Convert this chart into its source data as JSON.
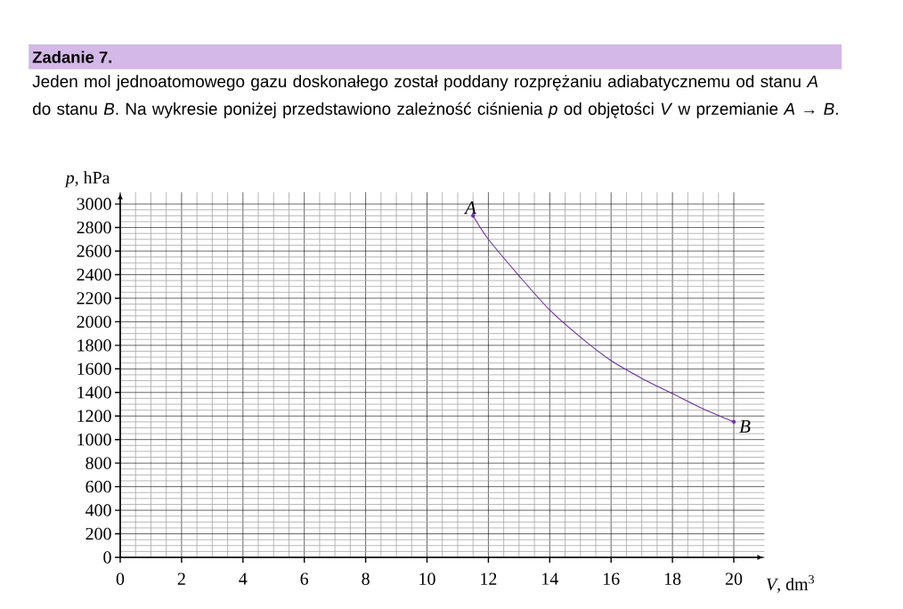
{
  "chart_data": {
    "type": "line",
    "title": "Zadanie 7.",
    "subtitle": "Jeden mol jednoatomowego gazu doskonałego został poddany rozprężaniu adiabatycznemu od stanu *A* do stanu *B*. Na wykresie poniżej przedstawiono zależność ciśnienia *p* od objętości *V* w przemianie *A* → *B*.",
    "xlabel": "*V*, dm$^{3}$",
    "ylabel": "*p*, hPa",
    "series": [
      {
        "type": "line",
        "color": "#7030a0",
        "marker": "none",
        "x": [
          11.5,
          12,
          13,
          14,
          15,
          16,
          17,
          18,
          19,
          20
        ],
        "values": [
          2900,
          2700,
          2390,
          2100,
          1870,
          1670,
          1520,
          1390,
          1260,
          1150
        ]
      },
      {
        "type": "scatter",
        "color": "#7030a0",
        "marker": "circle",
        "x": [
          11.5,
          20
        ],
        "values": [
          2900,
          1150
        ]
      }
    ],
    "annotations": [
      {
        "text": "*A*",
        "x": 11.5,
        "y": 2900
      },
      {
        "text": "*B*",
        "x": 20,
        "y": 1150
      }
    ],
    "xlim": [
      0,
      21
    ],
    "ylim": [
      0,
      3100
    ],
    "xticks": [
      0,
      2,
      4,
      6,
      8,
      10,
      12,
      14,
      16,
      18,
      20
    ],
    "yticks": [
      0,
      200,
      400,
      600,
      800,
      1000,
      1200,
      1400,
      1600,
      1800,
      2000,
      2200,
      2400,
      2600,
      2800,
      3000
    ],
    "grid": true
  }
}
